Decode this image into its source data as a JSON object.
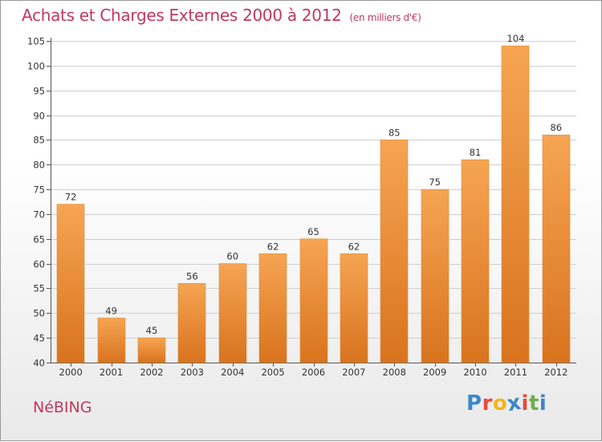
{
  "header": {
    "title": "Achats et Charges Externes 2000 à 2012",
    "subtitle": "(en milliers d'€)"
  },
  "footer": {
    "place": "NéBING",
    "logo_text": "Proxiti"
  },
  "colors": {
    "title": "#c0395e",
    "bar_top": "#f6a553",
    "bar_bottom": "#d9731e",
    "grid": "#cfcfcf",
    "logo": [
      "#3a88c9",
      "#e8493a",
      "#f2b51a",
      "#3a88c9",
      "#e8493a",
      "#6ab04c",
      "#3a88c9"
    ]
  },
  "chart_data": {
    "type": "bar",
    "title": "Achats et Charges Externes 2000 à 2012",
    "subtitle": "(en milliers d'€)",
    "xlabel": "",
    "ylabel": "",
    "categories": [
      "2000",
      "2001",
      "2002",
      "2003",
      "2004",
      "2005",
      "2006",
      "2007",
      "2008",
      "2009",
      "2010",
      "2011",
      "2012"
    ],
    "values": [
      72,
      49,
      45,
      56,
      60,
      62,
      65,
      62,
      85,
      75,
      81,
      104,
      86
    ],
    "ylim": [
      40,
      105
    ],
    "yticks": [
      40,
      45,
      50,
      55,
      60,
      65,
      70,
      75,
      80,
      85,
      90,
      95,
      100,
      105
    ],
    "grid": true,
    "data_labels": true
  }
}
